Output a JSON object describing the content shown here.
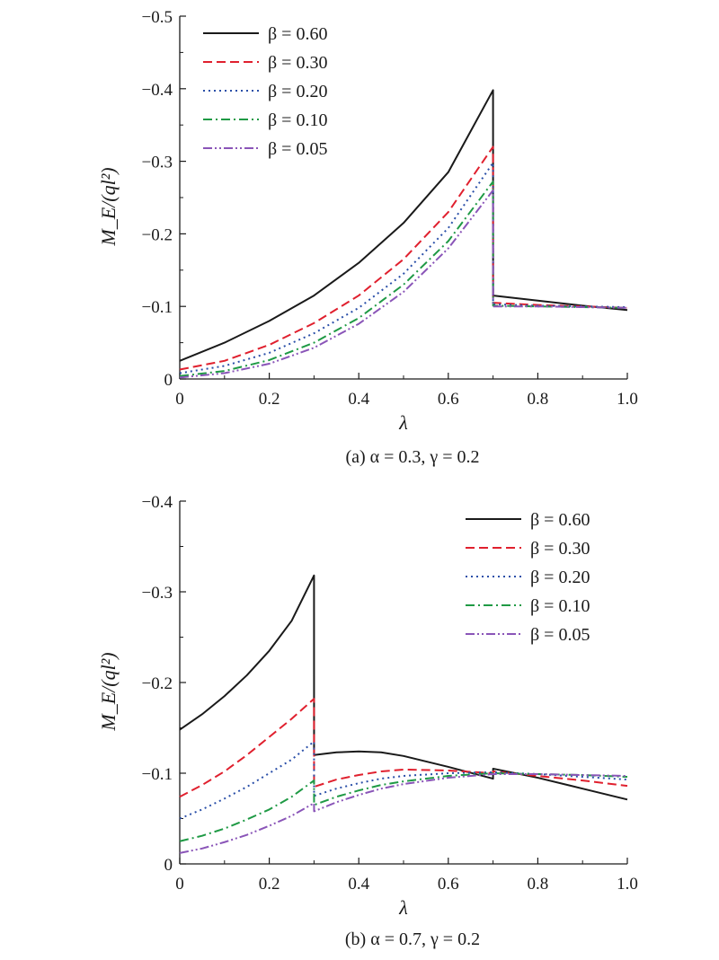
{
  "chart_data": [
    {
      "type": "line",
      "caption": "(a) α = 0.3, γ = 0.2",
      "xlabel": "λ",
      "ylabel": "M_E/(ql²)",
      "xlim": [
        0,
        1.0
      ],
      "ylim": [
        0,
        -0.5
      ],
      "xticks": [
        "0",
        "0.2",
        "0.4",
        "0.6",
        "0.8",
        "1.0"
      ],
      "yticks": [
        "0",
        "−0.1",
        "−0.2",
        "−0.3",
        "−0.4",
        "−0.5"
      ],
      "legend_position": "top-left",
      "series": [
        {
          "name": "β = 0.60",
          "color": "#1a1a1a",
          "dash": "solid",
          "x": [
            0,
            0.1,
            0.2,
            0.3,
            0.4,
            0.5,
            0.6,
            0.7,
            0.7001,
            0.8,
            0.9,
            1.0
          ],
          "y": [
            -0.025,
            -0.05,
            -0.08,
            -0.115,
            -0.16,
            -0.215,
            -0.285,
            -0.398,
            -0.115,
            -0.108,
            -0.101,
            -0.095
          ]
        },
        {
          "name": "β = 0.30",
          "color": "#e0202e",
          "dash": "dashed",
          "x": [
            0,
            0.1,
            0.2,
            0.3,
            0.4,
            0.5,
            0.6,
            0.7,
            0.7001,
            0.8,
            0.9,
            1.0
          ],
          "y": [
            -0.013,
            -0.025,
            -0.047,
            -0.077,
            -0.115,
            -0.165,
            -0.23,
            -0.32,
            -0.105,
            -0.102,
            -0.1,
            -0.098
          ]
        },
        {
          "name": "β = 0.20",
          "color": "#2a4fa8",
          "dash": "dotted",
          "x": [
            0,
            0.1,
            0.2,
            0.3,
            0.4,
            0.5,
            0.6,
            0.7,
            0.7001,
            0.8,
            0.9,
            1.0
          ],
          "y": [
            -0.008,
            -0.018,
            -0.036,
            -0.063,
            -0.098,
            -0.145,
            -0.208,
            -0.298,
            -0.103,
            -0.101,
            -0.1,
            -0.099
          ]
        },
        {
          "name": "β = 0.10",
          "color": "#1f9a45",
          "dash": "dashdot",
          "x": [
            0,
            0.1,
            0.2,
            0.3,
            0.4,
            0.5,
            0.6,
            0.7,
            0.7001,
            0.8,
            0.9,
            1.0
          ],
          "y": [
            -0.004,
            -0.011,
            -0.026,
            -0.05,
            -0.084,
            -0.13,
            -0.19,
            -0.272,
            -0.101,
            -0.1,
            -0.099,
            -0.098
          ]
        },
        {
          "name": "β = 0.05",
          "color": "#8a55b8",
          "dash": "dashdotdot",
          "x": [
            0,
            0.1,
            0.2,
            0.3,
            0.4,
            0.5,
            0.6,
            0.7,
            0.7001,
            0.8,
            0.9,
            1.0
          ],
          "y": [
            -0.002,
            -0.008,
            -0.021,
            -0.043,
            -0.076,
            -0.12,
            -0.18,
            -0.26,
            -0.1,
            -0.1,
            -0.099,
            -0.098
          ]
        }
      ]
    },
    {
      "type": "line",
      "caption": "(b) α = 0.7, γ = 0.2",
      "xlabel": "λ",
      "ylabel": "M_E/(ql²)",
      "xlim": [
        0,
        1.0
      ],
      "ylim": [
        0,
        -0.4
      ],
      "xticks": [
        "0",
        "0.2",
        "0.4",
        "0.6",
        "0.8",
        "1.0"
      ],
      "yticks": [
        "0",
        "−0.1",
        "−0.2",
        "−0.3",
        "−0.4"
      ],
      "legend_position": "top-right",
      "series": [
        {
          "name": "β = 0.60",
          "color": "#1a1a1a",
          "dash": "solid",
          "x": [
            0,
            0.05,
            0.1,
            0.15,
            0.2,
            0.25,
            0.3,
            0.3001,
            0.35,
            0.4,
            0.45,
            0.5,
            0.6,
            0.7,
            0.7001,
            0.8,
            0.9,
            1.0
          ],
          "y": [
            -0.148,
            -0.165,
            -0.185,
            -0.208,
            -0.235,
            -0.268,
            -0.318,
            -0.12,
            -0.123,
            -0.124,
            -0.123,
            -0.119,
            -0.107,
            -0.094,
            -0.105,
            -0.095,
            -0.083,
            -0.071
          ]
        },
        {
          "name": "β = 0.30",
          "color": "#e0202e",
          "dash": "dashed",
          "x": [
            0,
            0.05,
            0.1,
            0.15,
            0.2,
            0.25,
            0.3,
            0.3001,
            0.35,
            0.4,
            0.45,
            0.5,
            0.6,
            0.7,
            0.7001,
            0.8,
            0.9,
            1.0
          ],
          "y": [
            -0.074,
            -0.087,
            -0.102,
            -0.12,
            -0.14,
            -0.16,
            -0.182,
            -0.085,
            -0.093,
            -0.098,
            -0.102,
            -0.104,
            -0.103,
            -0.1,
            -0.102,
            -0.097,
            -0.092,
            -0.086
          ]
        },
        {
          "name": "β = 0.20",
          "color": "#2a4fa8",
          "dash": "dotted",
          "x": [
            0,
            0.05,
            0.1,
            0.15,
            0.2,
            0.25,
            0.3,
            0.3001,
            0.35,
            0.4,
            0.45,
            0.5,
            0.6,
            0.7,
            0.7001,
            0.8,
            0.9,
            1.0
          ],
          "y": [
            -0.05,
            -0.06,
            -0.072,
            -0.085,
            -0.1,
            -0.115,
            -0.135,
            -0.075,
            -0.083,
            -0.089,
            -0.094,
            -0.097,
            -0.1,
            -0.101,
            -0.101,
            -0.099,
            -0.096,
            -0.093
          ]
        },
        {
          "name": "β = 0.10",
          "color": "#1f9a45",
          "dash": "dashdot",
          "x": [
            0,
            0.05,
            0.1,
            0.15,
            0.2,
            0.25,
            0.3,
            0.3001,
            0.35,
            0.4,
            0.45,
            0.5,
            0.6,
            0.7,
            0.7001,
            0.8,
            0.9,
            1.0
          ],
          "y": [
            -0.025,
            -0.031,
            -0.039,
            -0.049,
            -0.06,
            -0.074,
            -0.092,
            -0.065,
            -0.074,
            -0.081,
            -0.087,
            -0.091,
            -0.097,
            -0.1,
            -0.1,
            -0.099,
            -0.098,
            -0.096
          ]
        },
        {
          "name": "β = 0.05",
          "color": "#8a55b8",
          "dash": "dashdotdot",
          "x": [
            0,
            0.05,
            0.1,
            0.15,
            0.2,
            0.25,
            0.3,
            0.3001,
            0.35,
            0.4,
            0.45,
            0.5,
            0.6,
            0.7,
            0.7001,
            0.8,
            0.9,
            1.0
          ],
          "y": [
            -0.012,
            -0.017,
            -0.024,
            -0.032,
            -0.042,
            -0.053,
            -0.067,
            -0.058,
            -0.068,
            -0.076,
            -0.083,
            -0.088,
            -0.095,
            -0.099,
            -0.099,
            -0.099,
            -0.098,
            -0.097
          ]
        }
      ]
    }
  ]
}
